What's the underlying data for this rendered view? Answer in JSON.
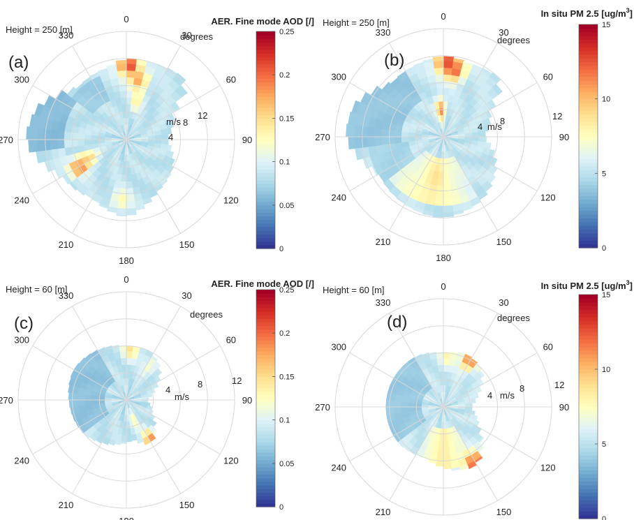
{
  "figure": {
    "panels": [
      {
        "id": "a",
        "panel_label": "(a)",
        "height_label": "Height = 250 [m]",
        "colorbar_title": "AER. Fine mode AOD [/]",
        "radius_unit": "m/s",
        "angle_unit": "degrees"
      },
      {
        "id": "b",
        "panel_label": "(b)",
        "height_label": "Height = 250 [m]",
        "colorbar_title": "In situ PM 2.5 [ug/m",
        "colorbar_title_sup": "3",
        "colorbar_title_end": "]",
        "radius_unit": "m/s",
        "angle_unit": "degrees"
      },
      {
        "id": "c",
        "panel_label": "(c)",
        "height_label": "Height = 60 [m]",
        "colorbar_title": "AER. Fine mode AOD [/]",
        "radius_unit": "m/s",
        "angle_unit": "degrees"
      },
      {
        "id": "d",
        "panel_label": "(d)",
        "height_label": "Height = 60 [m]",
        "colorbar_title": "In situ PM 2.5 [ug/m",
        "colorbar_title_sup": "3",
        "colorbar_title_end": "]",
        "radius_unit": "m/s",
        "angle_unit": "degrees"
      }
    ]
  },
  "chart_data": [
    {
      "type": "polar-contour",
      "panel": "(a)",
      "title": "AER. Fine mode AOD [/]",
      "subtitle": "Height = 250 [m]",
      "angle_ticks": [
        "0",
        "30",
        "60",
        "90",
        "120",
        "150",
        "180",
        "210",
        "240",
        "270",
        "300",
        "330"
      ],
      "radius_ticks": [
        "4",
        "8",
        "12"
      ],
      "radius_range": [
        0,
        16
      ],
      "colorbar": {
        "range": [
          0,
          0.25
        ],
        "ticks": [
          "0",
          "0.05",
          "0.1",
          "0.15",
          "0.2",
          "0.25"
        ],
        "colormap": "RdYlBu_r"
      },
      "field": {
        "background": 0.085,
        "extent_by_direction": [
          [
            0,
            12
          ],
          [
            20,
            12
          ],
          [
            45,
            12.5
          ],
          [
            60,
            8
          ],
          [
            90,
            6
          ],
          [
            120,
            8
          ],
          [
            150,
            9
          ],
          [
            180,
            11.5
          ],
          [
            210,
            10
          ],
          [
            240,
            11
          ],
          [
            270,
            15
          ],
          [
            290,
            14
          ],
          [
            315,
            10.5
          ],
          [
            345,
            11
          ],
          [
            360,
            12
          ]
        ],
        "low_zones": [
          [
            265,
            305,
            9,
            15,
            0.045
          ],
          [
            305,
            335,
            6,
            10,
            0.06
          ],
          [
            225,
            260,
            6,
            9,
            0.07
          ]
        ],
        "hotspots": [
          [
            2,
            11,
            0.22
          ],
          [
            12,
            9,
            0.18
          ],
          [
            240,
            8,
            0.21
          ],
          [
            245,
            6.5,
            0.16
          ],
          [
            15,
            6,
            0.14
          ],
          [
            185,
            9,
            0.13
          ]
        ]
      }
    },
    {
      "type": "polar-contour",
      "panel": "(b)",
      "title": "In situ PM 2.5 [ug/m3]",
      "subtitle": "Height = 250 [m]",
      "angle_ticks": [
        "0",
        "30",
        "60",
        "90",
        "120",
        "150",
        "180",
        "210",
        "240",
        "270",
        "300",
        "330"
      ],
      "radius_ticks": [
        "4",
        "8",
        "12"
      ],
      "radius_range": [
        0,
        16
      ],
      "colorbar": {
        "range": [
          0,
          15
        ],
        "ticks": [
          "0",
          "5",
          "10",
          "15"
        ],
        "colormap": "RdYlBu_r"
      },
      "field": {
        "background": 5.2,
        "extent_by_direction": [
          [
            0,
            12
          ],
          [
            20,
            11.5
          ],
          [
            45,
            12
          ],
          [
            60,
            8
          ],
          [
            90,
            6
          ],
          [
            120,
            9
          ],
          [
            150,
            11
          ],
          [
            180,
            12
          ],
          [
            210,
            11.5
          ],
          [
            240,
            11
          ],
          [
            270,
            14.5
          ],
          [
            290,
            14
          ],
          [
            315,
            11
          ],
          [
            345,
            11.5
          ],
          [
            360,
            12
          ]
        ],
        "low_zones": [
          [
            265,
            330,
            6,
            15,
            3.2
          ],
          [
            230,
            265,
            5,
            11,
            4.0
          ]
        ],
        "warm_zone": [
          150,
          235,
          3,
          10,
          8.2
        ],
        "hotspots": [
          [
            3,
            11,
            13.5
          ],
          [
            10,
            10,
            12.0
          ],
          [
            355,
            4,
            11.5
          ],
          [
            190,
            6,
            9.0
          ]
        ]
      }
    },
    {
      "type": "polar-contour",
      "panel": "(c)",
      "title": "AER. Fine mode AOD [/]",
      "subtitle": "Height = 60 [m]",
      "angle_ticks": [
        "0",
        "30",
        "60",
        "90",
        "120",
        "150",
        "180",
        "210",
        "240",
        "270",
        "300",
        "330"
      ],
      "radius_ticks": [
        "4",
        "8",
        "12"
      ],
      "radius_range": [
        0,
        16
      ],
      "colorbar": {
        "range": [
          0,
          0.25
        ],
        "ticks": [
          "0",
          "0.05",
          "0.1",
          "0.15",
          "0.2",
          "0.25"
        ],
        "colormap": "RdYlBu_r"
      },
      "field": {
        "background": 0.085,
        "extent_by_direction": [
          [
            0,
            8
          ],
          [
            25,
            8
          ],
          [
            45,
            7
          ],
          [
            70,
            4.5
          ],
          [
            90,
            3
          ],
          [
            120,
            4.5
          ],
          [
            150,
            7.5
          ],
          [
            170,
            6
          ],
          [
            200,
            7
          ],
          [
            230,
            8
          ],
          [
            270,
            8.5
          ],
          [
            300,
            9
          ],
          [
            330,
            8.5
          ],
          [
            360,
            8
          ]
        ],
        "low_zones": [
          [
            230,
            330,
            3,
            9,
            0.05
          ]
        ],
        "hotspots": [
          [
            5,
            7.5,
            0.15
          ],
          [
            148,
            7,
            0.19
          ],
          [
            35,
            6,
            0.12
          ],
          [
            160,
            3,
            0.13
          ]
        ]
      }
    },
    {
      "type": "polar-contour",
      "panel": "(d)",
      "title": "In situ PM 2.5 [ug/m3]",
      "subtitle": "Height = 60 [m]",
      "angle_ticks": [
        "0",
        "30",
        "60",
        "90",
        "120",
        "150",
        "180",
        "210",
        "240",
        "270",
        "300",
        "330"
      ],
      "radius_ticks": [
        "4",
        "8",
        "12"
      ],
      "radius_range": [
        0,
        16
      ],
      "colorbar": {
        "range": [
          0,
          15
        ],
        "ticks": [
          "0",
          "5",
          "10",
          "15"
        ],
        "colormap": "RdYlBu_r"
      },
      "field": {
        "background": 5.3,
        "extent_by_direction": [
          [
            0,
            8
          ],
          [
            25,
            8.5
          ],
          [
            45,
            8
          ],
          [
            70,
            5.5
          ],
          [
            90,
            4
          ],
          [
            120,
            6
          ],
          [
            150,
            10
          ],
          [
            170,
            9.5
          ],
          [
            200,
            8
          ],
          [
            230,
            8.5
          ],
          [
            270,
            8.5
          ],
          [
            300,
            8.5
          ],
          [
            330,
            8.5
          ],
          [
            360,
            8
          ]
        ],
        "low_zones": [
          [
            230,
            330,
            3,
            9,
            3.3
          ]
        ],
        "warm_zone": [
          150,
          210,
          3,
          9,
          8.4
        ],
        "hotspots": [
          [
            30,
            8,
            12.0
          ],
          [
            150,
            9.5,
            13.0
          ],
          [
            5,
            7.5,
            8.0
          ]
        ]
      }
    }
  ]
}
